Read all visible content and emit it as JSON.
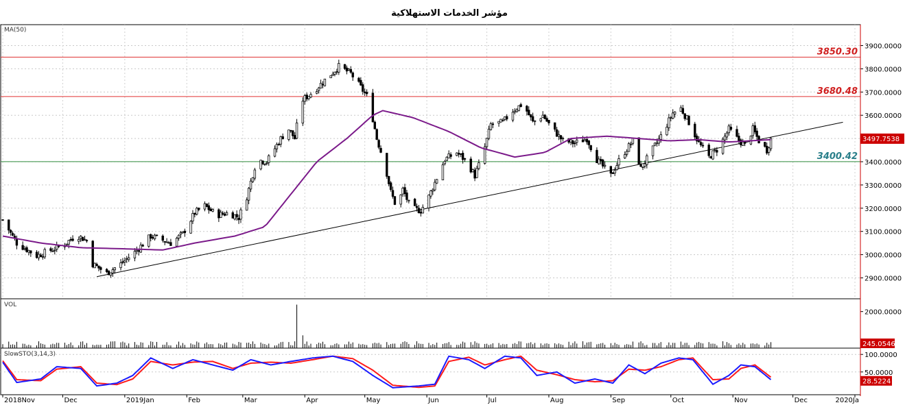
{
  "chart_data": {
    "type": "candlestick",
    "title": "مؤشر الخدمات الاستهلاكية",
    "colors": {
      "up_candle": "#ffffff",
      "down_candle": "#000000",
      "ma_line": "#7b1a8a",
      "resistance": "#e03030",
      "support": "#2e8b3a",
      "trend_line": "#000000",
      "stoch_k": "#1a1aff",
      "stoch_d": "#ff1a1a",
      "price_tag": "#cc0000"
    },
    "x_labels": [
      "2018Nov",
      "Dec",
      "2019Jan",
      "Feb",
      "Mar",
      "Apr",
      "May",
      "Jun",
      "Jul",
      "Aug",
      "Sep",
      "Oct",
      "Nov",
      "Dec",
      "2020Ja"
    ],
    "x_label_dates": [
      "2018-11-01",
      "2018-12-01",
      "2019-01-01",
      "2019-02-01",
      "2019-03-01",
      "2019-04-01",
      "2019-05-01",
      "2019-06-01",
      "2019-07-01",
      "2019-08-01",
      "2019-09-01",
      "2019-10-01",
      "2019-11-01",
      "2019-12-01",
      "2020-01-01"
    ],
    "price_panel": {
      "label": "MA(50)",
      "ylim": [
        2810,
        3990
      ],
      "y_ticks": [
        "2900.0000",
        "3000.0000",
        "3100.0000",
        "3200.0000",
        "3300.0000",
        "3400.0000",
        "3500.0000",
        "3600.0000",
        "3700.0000",
        "3800.0000",
        "3900.0000"
      ],
      "last_value": "3497.7538",
      "levels": [
        {
          "value": 3850.3,
          "label": "3850.30",
          "kind": "resistance"
        },
        {
          "value": 3680.48,
          "label": "3680.48",
          "kind": "resistance"
        },
        {
          "value": 3400.42,
          "label": "3400.42",
          "kind": "support"
        }
      ],
      "trend_line": [
        {
          "date": "2018-12-18",
          "value": 2905
        },
        {
          "date": "2019-12-26",
          "value": 3570
        }
      ],
      "price_path": [
        [
          "2018-11-01",
          3150
        ],
        [
          "2018-11-08",
          3050
        ],
        [
          "2018-11-18",
          2995
        ],
        [
          "2018-12-01",
          3040
        ],
        [
          "2018-12-08",
          3085
        ],
        [
          "2018-12-13",
          3060
        ],
        [
          "2018-12-16",
          2960
        ],
        [
          "2018-12-23",
          2920
        ],
        [
          "2018-12-30",
          2960
        ],
        [
          "2019-01-06",
          3010
        ],
        [
          "2019-01-14",
          3080
        ],
        [
          "2019-01-24",
          3050
        ],
        [
          "2019-01-30",
          3090
        ],
        [
          "2019-02-05",
          3180
        ],
        [
          "2019-02-10",
          3210
        ],
        [
          "2019-02-16",
          3170
        ],
        [
          "2019-02-22",
          3180
        ],
        [
          "2019-02-27",
          3160
        ],
        [
          "2019-03-03",
          3250
        ],
        [
          "2019-03-08",
          3410
        ],
        [
          "2019-03-13",
          3400
        ],
        [
          "2019-03-20",
          3500
        ],
        [
          "2019-03-24",
          3540
        ],
        [
          "2019-03-27",
          3500
        ],
        [
          "2019-03-30",
          3660
        ],
        [
          "2019-04-05",
          3700
        ],
        [
          "2019-04-12",
          3760
        ],
        [
          "2019-04-18",
          3810
        ],
        [
          "2019-04-24",
          3780
        ],
        [
          "2019-04-29",
          3720
        ],
        [
          "2019-05-03",
          3670
        ],
        [
          "2019-05-07",
          3500
        ],
        [
          "2019-05-11",
          3390
        ],
        [
          "2019-05-14",
          3270
        ],
        [
          "2019-05-17",
          3200
        ],
        [
          "2019-05-20",
          3280
        ],
        [
          "2019-05-24",
          3200
        ],
        [
          "2019-05-29",
          3190
        ],
        [
          "2019-06-02",
          3250
        ],
        [
          "2019-06-06",
          3330
        ],
        [
          "2019-06-10",
          3410
        ],
        [
          "2019-06-16",
          3440
        ],
        [
          "2019-06-21",
          3400
        ],
        [
          "2019-06-25",
          3340
        ],
        [
          "2019-06-29",
          3430
        ],
        [
          "2019-07-03",
          3560
        ],
        [
          "2019-07-09",
          3570
        ],
        [
          "2019-07-14",
          3620
        ],
        [
          "2019-07-19",
          3650
        ],
        [
          "2019-07-24",
          3570
        ],
        [
          "2019-07-29",
          3600
        ],
        [
          "2019-08-02",
          3550
        ],
        [
          "2019-08-08",
          3490
        ],
        [
          "2019-08-14",
          3480
        ],
        [
          "2019-08-20",
          3500
        ],
        [
          "2019-08-25",
          3410
        ],
        [
          "2019-09-01",
          3340
        ],
        [
          "2019-09-06",
          3420
        ],
        [
          "2019-09-12",
          3490
        ],
        [
          "2019-09-16",
          3370
        ],
        [
          "2019-09-21",
          3440
        ],
        [
          "2019-09-26",
          3510
        ],
        [
          "2019-10-02",
          3610
        ],
        [
          "2019-10-06",
          3630
        ],
        [
          "2019-10-10",
          3570
        ],
        [
          "2019-10-15",
          3480
        ],
        [
          "2019-10-20",
          3420
        ],
        [
          "2019-10-25",
          3460
        ],
        [
          "2019-10-30",
          3540
        ],
        [
          "2019-11-03",
          3500
        ],
        [
          "2019-11-07",
          3470
        ],
        [
          "2019-11-11",
          3540
        ],
        [
          "2019-11-14",
          3490
        ],
        [
          "2019-11-18",
          3450
        ],
        [
          "2019-11-20",
          3498
        ]
      ],
      "ma_path": [
        [
          "2018-11-01",
          3080
        ],
        [
          "2018-11-20",
          3050
        ],
        [
          "2018-12-10",
          3030
        ],
        [
          "2019-01-01",
          3025
        ],
        [
          "2019-01-20",
          3020
        ],
        [
          "2019-02-05",
          3050
        ],
        [
          "2019-02-25",
          3080
        ],
        [
          "2019-03-12",
          3120
        ],
        [
          "2019-03-25",
          3260
        ],
        [
          "2019-04-07",
          3400
        ],
        [
          "2019-04-22",
          3500
        ],
        [
          "2019-05-05",
          3600
        ],
        [
          "2019-05-10",
          3620
        ],
        [
          "2019-05-25",
          3590
        ],
        [
          "2019-06-12",
          3530
        ],
        [
          "2019-06-28",
          3460
        ],
        [
          "2019-07-15",
          3420
        ],
        [
          "2019-07-30",
          3440
        ],
        [
          "2019-08-12",
          3500
        ],
        [
          "2019-08-30",
          3510
        ],
        [
          "2019-09-15",
          3500
        ],
        [
          "2019-09-30",
          3490
        ],
        [
          "2019-10-15",
          3495
        ],
        [
          "2019-10-30",
          3485
        ],
        [
          "2019-11-20",
          3495
        ]
      ]
    },
    "volume_panel": {
      "label": "VOL",
      "ylim": [
        0,
        2700
      ],
      "y_ticks": [
        "2000.0000"
      ],
      "last_value": "245.0546",
      "typical": 260,
      "spikes": [
        [
          "2018-11-03",
          780
        ],
        [
          "2019-03-28",
          2380
        ],
        [
          "2019-10-05",
          620
        ],
        [
          "2019-03-31",
          700
        ],
        [
          "2019-05-10",
          420
        ]
      ]
    },
    "stoch_panel": {
      "label": "SlowSTO(3,14,3)",
      "ylim": [
        -15,
        118
      ],
      "y_ticks": [
        "50.0000",
        "100.0000"
      ],
      "last_value": "28.5224",
      "k_path": [
        [
          "2018-11-01",
          78
        ],
        [
          "2018-11-08",
          20
        ],
        [
          "2018-11-20",
          30
        ],
        [
          "2018-11-28",
          65
        ],
        [
          "2018-12-10",
          60
        ],
        [
          "2018-12-18",
          10
        ],
        [
          "2018-12-28",
          18
        ],
        [
          "2019-01-05",
          40
        ],
        [
          "2019-01-14",
          90
        ],
        [
          "2019-01-25",
          60
        ],
        [
          "2019-02-04",
          85
        ],
        [
          "2019-02-14",
          70
        ],
        [
          "2019-02-24",
          55
        ],
        [
          "2019-03-05",
          85
        ],
        [
          "2019-03-15",
          70
        ],
        [
          "2019-03-25",
          80
        ],
        [
          "2019-04-05",
          90
        ],
        [
          "2019-04-15",
          95
        ],
        [
          "2019-04-25",
          80
        ],
        [
          "2019-05-05",
          40
        ],
        [
          "2019-05-15",
          5
        ],
        [
          "2019-05-28",
          10
        ],
        [
          "2019-06-05",
          15
        ],
        [
          "2019-06-12",
          95
        ],
        [
          "2019-06-22",
          85
        ],
        [
          "2019-06-30",
          60
        ],
        [
          "2019-07-10",
          95
        ],
        [
          "2019-07-18",
          90
        ],
        [
          "2019-07-26",
          40
        ],
        [
          "2019-08-05",
          50
        ],
        [
          "2019-08-14",
          18
        ],
        [
          "2019-08-24",
          30
        ],
        [
          "2019-09-02",
          18
        ],
        [
          "2019-09-10",
          70
        ],
        [
          "2019-09-18",
          45
        ],
        [
          "2019-09-26",
          75
        ],
        [
          "2019-10-05",
          90
        ],
        [
          "2019-10-12",
          85
        ],
        [
          "2019-10-22",
          15
        ],
        [
          "2019-10-30",
          40
        ],
        [
          "2019-11-05",
          70
        ],
        [
          "2019-11-12",
          65
        ],
        [
          "2019-11-20",
          28
        ]
      ],
      "d_path": [
        [
          "2018-11-01",
          82
        ],
        [
          "2018-11-08",
          28
        ],
        [
          "2018-11-20",
          25
        ],
        [
          "2018-11-28",
          58
        ],
        [
          "2018-12-10",
          65
        ],
        [
          "2018-12-18",
          18
        ],
        [
          "2018-12-28",
          14
        ],
        [
          "2019-01-05",
          30
        ],
        [
          "2019-01-14",
          80
        ],
        [
          "2019-01-25",
          70
        ],
        [
          "2019-02-04",
          78
        ],
        [
          "2019-02-14",
          80
        ],
        [
          "2019-02-24",
          60
        ],
        [
          "2019-03-05",
          75
        ],
        [
          "2019-03-15",
          78
        ],
        [
          "2019-03-25",
          75
        ],
        [
          "2019-04-05",
          85
        ],
        [
          "2019-04-15",
          95
        ],
        [
          "2019-04-25",
          88
        ],
        [
          "2019-05-05",
          55
        ],
        [
          "2019-05-15",
          12
        ],
        [
          "2019-05-28",
          6
        ],
        [
          "2019-06-05",
          10
        ],
        [
          "2019-06-12",
          80
        ],
        [
          "2019-06-22",
          92
        ],
        [
          "2019-06-30",
          70
        ],
        [
          "2019-07-10",
          85
        ],
        [
          "2019-07-18",
          95
        ],
        [
          "2019-07-26",
          55
        ],
        [
          "2019-08-05",
          42
        ],
        [
          "2019-08-14",
          28
        ],
        [
          "2019-08-24",
          22
        ],
        [
          "2019-09-02",
          25
        ],
        [
          "2019-09-10",
          58
        ],
        [
          "2019-09-18",
          55
        ],
        [
          "2019-09-26",
          65
        ],
        [
          "2019-10-05",
          85
        ],
        [
          "2019-10-12",
          90
        ],
        [
          "2019-10-22",
          28
        ],
        [
          "2019-10-30",
          30
        ],
        [
          "2019-11-05",
          60
        ],
        [
          "2019-11-12",
          70
        ],
        [
          "2019-11-20",
          35
        ]
      ]
    }
  }
}
